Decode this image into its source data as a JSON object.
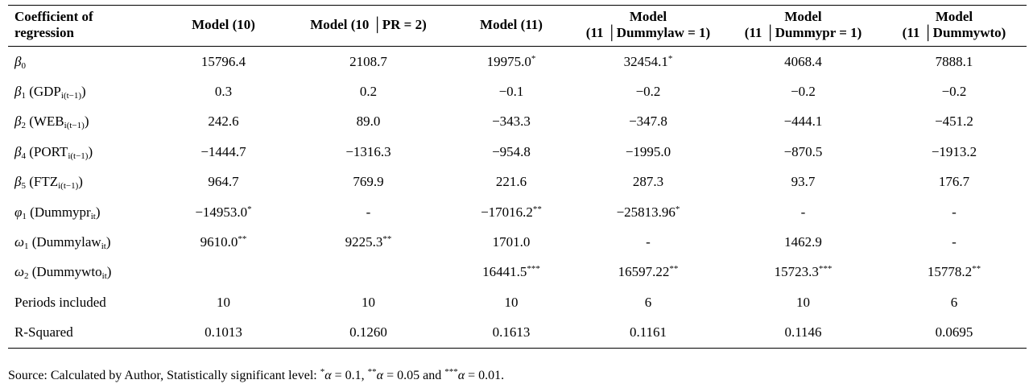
{
  "table": {
    "headers": [
      {
        "line1": "Coefficient of",
        "line2": "regression"
      },
      {
        "line1": "Model (10)",
        "line2": ""
      },
      {
        "line1": "Model (10 │PR = 2)",
        "line2": ""
      },
      {
        "line1": "Model (11)",
        "line2": ""
      },
      {
        "line1": "Model",
        "line2": "(11 │Dummylaw = 1)"
      },
      {
        "line1": "Model",
        "line2": "(11 │Dummypr = 1)"
      },
      {
        "line1": "Model",
        "line2": "(11 │Dummywto)"
      }
    ],
    "rows": [
      {
        "sym": "β",
        "symsub": "0",
        "name": "",
        "namesub": "",
        "namesuffix": "",
        "cells": [
          {
            "v": "15796.4",
            "s": ""
          },
          {
            "v": "2108.7",
            "s": ""
          },
          {
            "v": "19975.0",
            "s": "*"
          },
          {
            "v": "32454.1",
            "s": "*"
          },
          {
            "v": "4068.4",
            "s": ""
          },
          {
            "v": "7888.1",
            "s": ""
          }
        ]
      },
      {
        "sym": "β",
        "symsub": "1",
        "name": " (GDP",
        "namesub": "i(t−1)",
        "namesuffix": ")",
        "cells": [
          {
            "v": "0.3",
            "s": ""
          },
          {
            "v": "0.2",
            "s": ""
          },
          {
            "v": "−0.1",
            "s": ""
          },
          {
            "v": "−0.2",
            "s": ""
          },
          {
            "v": "−0.2",
            "s": ""
          },
          {
            "v": "−0.2",
            "s": ""
          }
        ]
      },
      {
        "sym": "β",
        "symsub": "2",
        "name": " (WEB",
        "namesub": "i(t−1)",
        "namesuffix": ")",
        "cells": [
          {
            "v": "242.6",
            "s": ""
          },
          {
            "v": "89.0",
            "s": ""
          },
          {
            "v": "−343.3",
            "s": ""
          },
          {
            "v": "−347.8",
            "s": ""
          },
          {
            "v": "−444.1",
            "s": ""
          },
          {
            "v": "−451.2",
            "s": ""
          }
        ]
      },
      {
        "sym": "β",
        "symsub": "4",
        "name": " (PORT",
        "namesub": "i(t−1)",
        "namesuffix": ")",
        "cells": [
          {
            "v": "−1444.7",
            "s": ""
          },
          {
            "v": "−1316.3",
            "s": ""
          },
          {
            "v": "−954.8",
            "s": ""
          },
          {
            "v": "−1995.0",
            "s": ""
          },
          {
            "v": "−870.5",
            "s": ""
          },
          {
            "v": "−1913.2",
            "s": ""
          }
        ]
      },
      {
        "sym": "β",
        "symsub": "5",
        "name": " (FTZ",
        "namesub": "i(t−1)",
        "namesuffix": ")",
        "cells": [
          {
            "v": "964.7",
            "s": ""
          },
          {
            "v": "769.9",
            "s": ""
          },
          {
            "v": "221.6",
            "s": ""
          },
          {
            "v": "287.3",
            "s": ""
          },
          {
            "v": "93.7",
            "s": ""
          },
          {
            "v": "176.7",
            "s": ""
          }
        ]
      },
      {
        "sym": "φ",
        "symsub": "1",
        "name": " (Dummypr",
        "namesub": "it",
        "namesuffix": ")",
        "cells": [
          {
            "v": "−14953.0",
            "s": "*"
          },
          {
            "v": "-",
            "s": ""
          },
          {
            "v": "−17016.2",
            "s": "**"
          },
          {
            "v": "−25813.96",
            "s": "*"
          },
          {
            "v": "-",
            "s": ""
          },
          {
            "v": "-",
            "s": ""
          }
        ]
      },
      {
        "sym": "ω",
        "symsub": "1",
        "name": " (Dummylaw",
        "namesub": "it",
        "namesuffix": ")",
        "cells": [
          {
            "v": "9610.0",
            "s": "**"
          },
          {
            "v": "9225.3",
            "s": "**"
          },
          {
            "v": "1701.0",
            "s": ""
          },
          {
            "v": "-",
            "s": ""
          },
          {
            "v": "1462.9",
            "s": ""
          },
          {
            "v": "-",
            "s": ""
          }
        ]
      },
      {
        "sym": "ω",
        "symsub": "2",
        "name": " (Dummywto",
        "namesub": "it",
        "namesuffix": ")",
        "cells": [
          {
            "v": "",
            "s": ""
          },
          {
            "v": "",
            "s": ""
          },
          {
            "v": "16441.5",
            "s": "***"
          },
          {
            "v": "16597.22",
            "s": "**"
          },
          {
            "v": "15723.3",
            "s": "***"
          },
          {
            "v": "15778.2",
            "s": "**"
          }
        ]
      },
      {
        "sym": "",
        "symsub": "",
        "name": "Periods included",
        "namesub": "",
        "namesuffix": "",
        "cells": [
          {
            "v": "10",
            "s": ""
          },
          {
            "v": "10",
            "s": ""
          },
          {
            "v": "10",
            "s": ""
          },
          {
            "v": "6",
            "s": ""
          },
          {
            "v": "10",
            "s": ""
          },
          {
            "v": "6",
            "s": ""
          }
        ]
      },
      {
        "sym": "",
        "symsub": "",
        "name": "R-Squared",
        "namesub": "",
        "namesuffix": "",
        "cells": [
          {
            "v": "0.1013",
            "s": ""
          },
          {
            "v": "0.1260",
            "s": ""
          },
          {
            "v": "0.1613",
            "s": ""
          },
          {
            "v": "0.1161",
            "s": ""
          },
          {
            "v": "0.1146",
            "s": ""
          },
          {
            "v": "0.0695",
            "s": ""
          }
        ]
      }
    ]
  },
  "note": {
    "prefix": "Source: Calculated by Author, Statistically significant level: ",
    "star1": "*",
    "alpha1": "α",
    "level1": " = 0.1, ",
    "star2": "**",
    "alpha2": "α",
    "level2": " = 0.05 and ",
    "star3": "***",
    "alpha3": "α",
    "level3": " = 0.01."
  }
}
